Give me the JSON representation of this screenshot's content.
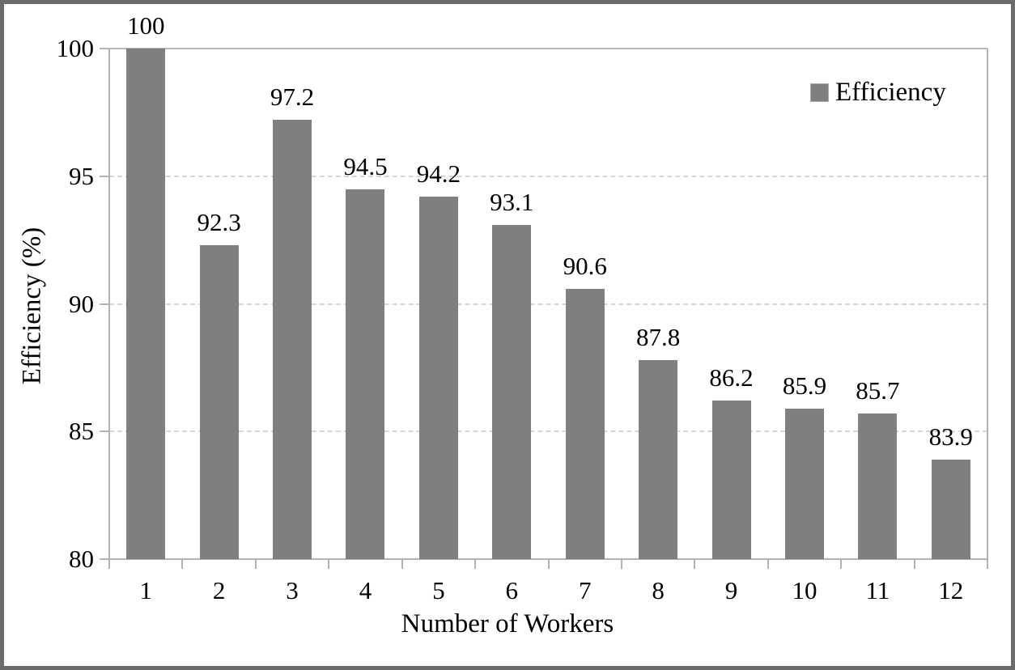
{
  "chart_data": {
    "type": "bar",
    "title": "",
    "xlabel": "Number of Workers",
    "ylabel": "Efficiency (%)",
    "categories": [
      "1",
      "2",
      "3",
      "4",
      "5",
      "6",
      "7",
      "8",
      "9",
      "10",
      "11",
      "12"
    ],
    "values": [
      100,
      92.3,
      97.2,
      94.5,
      94.2,
      93.1,
      90.6,
      87.8,
      86.2,
      85.9,
      85.7,
      83.9
    ],
    "value_labels": [
      "100",
      "92.3",
      "97.2",
      "94.5",
      "94.2",
      "93.1",
      "90.6",
      "87.8",
      "86.2",
      "85.9",
      "85.7",
      "83.9"
    ],
    "series": [
      {
        "name": "Efficiency",
        "values": [
          100,
          92.3,
          97.2,
          94.5,
          94.2,
          93.1,
          90.6,
          87.8,
          86.2,
          85.9,
          85.7,
          83.9
        ]
      }
    ],
    "ylim": [
      80,
      100
    ],
    "yticks": [
      80,
      85,
      90,
      95,
      100
    ],
    "ytick_labels": [
      "80",
      "85",
      "90",
      "95",
      "100"
    ],
    "grid": "horizontal dashed at 85, 90, 95; solid light line at 100",
    "legend_position": "top-right inside plot",
    "legend_entries": [
      "Efficiency"
    ]
  },
  "colors": {
    "bar": "#7f7f7f",
    "axis": "#b3b3b3",
    "gridline": "#d6d6d6",
    "text": "#000000",
    "frame_border": "#6b6b6b",
    "background": "#ffffff"
  }
}
